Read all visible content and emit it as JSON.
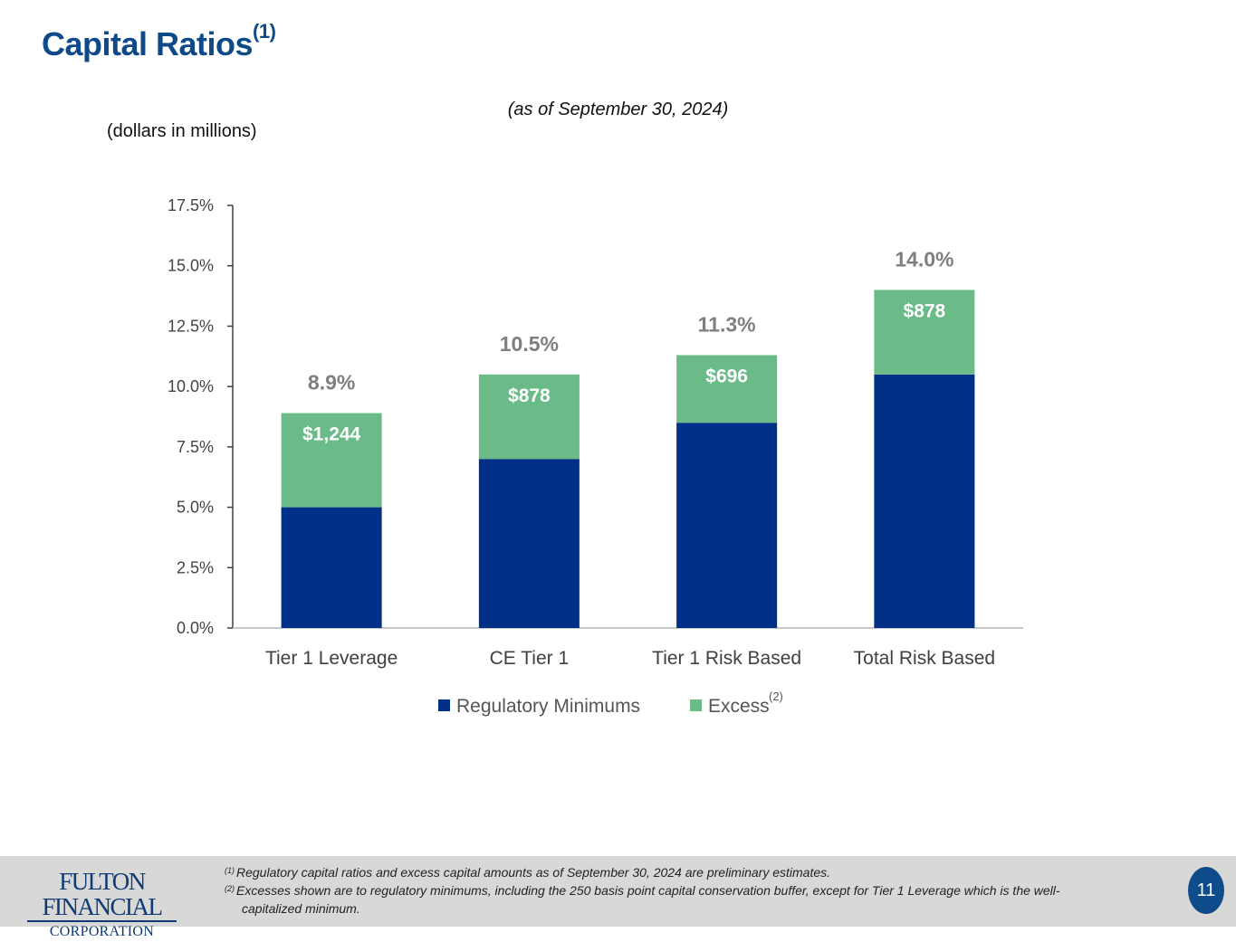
{
  "page": {
    "title": "Capital Ratios",
    "title_note": "(1)",
    "subtitle": "(as of September 30, 2024)",
    "units": "(dollars in millions)"
  },
  "chart_data": {
    "type": "bar",
    "stacked": true,
    "title": "",
    "categories": [
      "Tier 1 Leverage",
      "CE Tier 1",
      "Tier 1 Risk Based",
      "Total Risk Based"
    ],
    "series": [
      {
        "name": "Regulatory Minimums",
        "color": "#003087",
        "values": [
          5.0,
          7.0,
          8.5,
          10.5
        ]
      },
      {
        "name": "Excess",
        "note": "(2)",
        "color": "#6bbb89",
        "values": [
          3.9,
          3.5,
          2.8,
          3.5
        ]
      }
    ],
    "totals": [
      "8.9%",
      "10.5%",
      "11.3%",
      "14.0%"
    ],
    "excess_labels": [
      "$1,244",
      "$878",
      "$696",
      "$878"
    ],
    "yticks": [
      "0.0%",
      "2.5%",
      "5.0%",
      "7.5%",
      "10.0%",
      "12.5%",
      "15.0%",
      "17.5%"
    ],
    "ylim": [
      0,
      17.5
    ],
    "ystep": 2.5,
    "legend": "bottom",
    "xlabel": "",
    "ylabel": ""
  },
  "footer": {
    "notes": [
      {
        "marker": "(1)",
        "text": "Regulatory capital ratios and excess capital amounts as of September 30, 2024 are preliminary estimates."
      },
      {
        "marker": "(2)",
        "text": "Excesses shown are to regulatory minimums, including the 250 basis point capital conservation buffer, except for Tier 1 Leverage which is the well-",
        "continuation": "capitalized minimum."
      }
    ],
    "logo_line1": "FULTON FINANCIAL",
    "logo_line2": "CORPORATION",
    "page_number": "11"
  }
}
